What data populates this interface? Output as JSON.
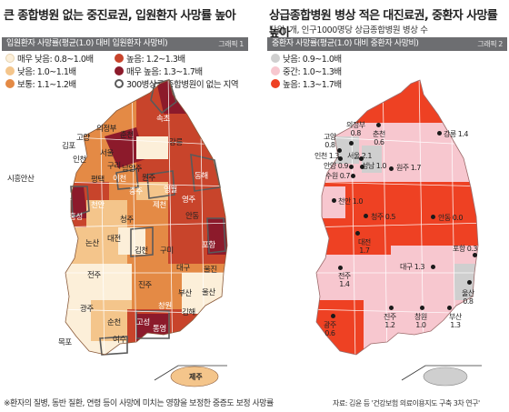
{
  "left": {
    "title": "큰 종합병원 없는 중진료권, 입원환자 사망률 높아",
    "bar_label": "입원환자 사망률(평균(1.0) 대비 입원환자 사망비)",
    "figure_no": "그래픽 1",
    "legend": [
      {
        "label": "매우 낮음: 0.8~1.0배",
        "color": "#fcefd9"
      },
      {
        "label": "높음: 1.2~1.3배",
        "color": "#c8442b"
      },
      {
        "label": "낮음: 1.0~1.1배",
        "color": "#f4c58b"
      },
      {
        "label": "매우 높음: 1.3~1.7배",
        "color": "#8c1a2b"
      },
      {
        "label": "보통: 1.1~1.2배",
        "color": "#e48a45"
      },
      {
        "label": "300병상급 종합병원이 없는 지역",
        "color": "#ffffff"
      }
    ],
    "regions": [
      "속초",
      "강릉",
      "춘천",
      "동해",
      "원주",
      "영월",
      "김포",
      "고양",
      "의정부",
      "인천",
      "서울",
      "시흥안산",
      "구리",
      "남양주",
      "평택",
      "당진",
      "이천",
      "서산",
      "충주",
      "안동",
      "천안",
      "제천",
      "홍성",
      "청주",
      "논산",
      "대전",
      "김천",
      "구미",
      "포항",
      "영주",
      "전주",
      "대구",
      "울진",
      "진주",
      "부산",
      "광주",
      "울산",
      "순천",
      "고성",
      "통영",
      "창원",
      "김해",
      "여수",
      "목포",
      "제주"
    ],
    "jeju": "제주"
  },
  "right": {
    "title": "상급종합병원 병상 적은 대진료권, 중환자 사망률 높아",
    "unit": "단위: 개, 인구1000명당 상급종합병원 병상 수",
    "bar_label": "중환자 사망률(평균(1.0) 대비 중환자 사망비)",
    "figure_no": "그래픽 2",
    "legend": [
      {
        "label": "낮음: 0.9~1.0배",
        "color": "#cfcfcf"
      },
      {
        "label": "중간: 1.0~1.3배",
        "color": "#f7c7cf"
      },
      {
        "label": "높음: 1.3~1.7배",
        "color": "#ee4123"
      }
    ],
    "cities": [
      {
        "name": "의정부",
        "value": "0.8"
      },
      {
        "name": "고양",
        "value": "0.8"
      },
      {
        "name": "춘천",
        "value": "0.6"
      },
      {
        "name": "강릉",
        "value": "1.4"
      },
      {
        "name": "인천",
        "value": "1.3"
      },
      {
        "name": "서울",
        "value": "2.1"
      },
      {
        "name": "안양",
        "value": "0.9"
      },
      {
        "name": "성남",
        "value": "1.0"
      },
      {
        "name": "수원",
        "value": "0.7"
      },
      {
        "name": "원주",
        "value": "1.7"
      },
      {
        "name": "천안",
        "value": "1.0"
      },
      {
        "name": "청주",
        "value": "0.5"
      },
      {
        "name": "안동",
        "value": "0.0"
      },
      {
        "name": "대전",
        "value": "1.7"
      },
      {
        "name": "포항",
        "value": "0.3"
      },
      {
        "name": "전주",
        "value": "1.4"
      },
      {
        "name": "대구",
        "value": "1.3"
      },
      {
        "name": "울산",
        "value": "0.8"
      },
      {
        "name": "진주",
        "value": "1.2"
      },
      {
        "name": "창원",
        "value": "1.0"
      },
      {
        "name": "부산",
        "value": "1.3"
      },
      {
        "name": "광주",
        "value": "0.6"
      }
    ]
  },
  "footnote": "※환자의 질병, 동반 질환, 연령 등이 사망에 미치는 영향을 보정한 중증도 보정 사망률",
  "source": "자료: 김윤 등 '건강보험 의료이용지도 구축 3차 연구'"
}
